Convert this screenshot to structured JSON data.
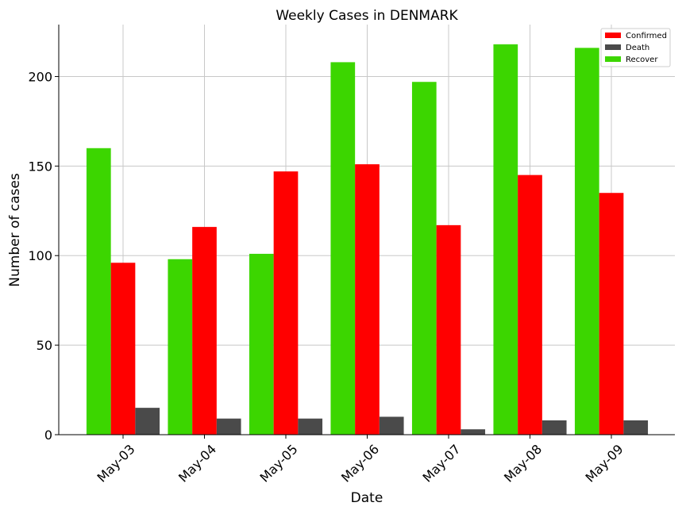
{
  "chart_data": {
    "type": "bar",
    "title": "Weekly Cases in DENMARK",
    "xlabel": "Date",
    "ylabel": "Number of cases",
    "categories": [
      "May-03",
      "May-04",
      "May-05",
      "May-06",
      "May-07",
      "May-08",
      "May-09"
    ],
    "series": [
      {
        "name": "Recover",
        "color": "#3cd600",
        "values": [
          160,
          98,
          101,
          208,
          197,
          218,
          216
        ]
      },
      {
        "name": "Confirmed",
        "color": "#ff0000",
        "values": [
          96,
          116,
          147,
          151,
          117,
          145,
          135
        ]
      },
      {
        "name": "Death",
        "color": "#4a4a4a",
        "values": [
          15,
          9,
          9,
          10,
          3,
          8,
          8
        ]
      }
    ],
    "legend_order": [
      "Confirmed",
      "Death",
      "Recover"
    ],
    "ylim": [
      0,
      229
    ],
    "yticks": [
      0,
      50,
      100,
      150,
      200
    ],
    "grid": true,
    "legend_position": "top-right"
  }
}
